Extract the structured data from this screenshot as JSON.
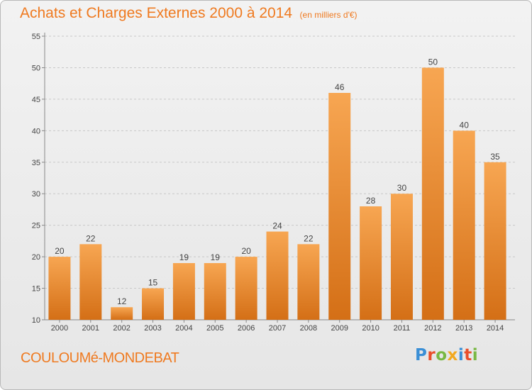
{
  "header": {
    "title": "Achats et Charges Externes 2000 à 2014",
    "subtitle": "(en milliers d'€)"
  },
  "footer": {
    "commune": "COULOUMé-MONDEBAT",
    "logo": {
      "text": "Proxiti",
      "letters": [
        {
          "ch": "P",
          "color": "#3a8fd6"
        },
        {
          "ch": "r",
          "color": "#e94e2a"
        },
        {
          "ch": "o",
          "color": "#78b843"
        },
        {
          "ch": "x",
          "color": "#f2a91f"
        },
        {
          "ch": "i",
          "color": "#3a8fd6"
        },
        {
          "ch": "t",
          "color": "#e94e2a"
        },
        {
          "ch": "i",
          "color": "#78b843"
        }
      ]
    }
  },
  "colors": {
    "accent": "#ef7a20",
    "bar_light": "#f7a652",
    "bar_dark": "#d9731a",
    "grid": "#c8c8c8"
  },
  "chart_data": {
    "type": "bar",
    "title": "Achats et Charges Externes 2000 à 2014",
    "categories": [
      "2000",
      "2001",
      "2002",
      "2003",
      "2004",
      "2005",
      "2006",
      "2007",
      "2008",
      "2009",
      "2010",
      "2011",
      "2012",
      "2013",
      "2014"
    ],
    "values": [
      20,
      22,
      12,
      15,
      19,
      19,
      20,
      24,
      22,
      46,
      28,
      30,
      50,
      40,
      35
    ],
    "ylim": [
      10,
      55
    ],
    "yticks": [
      10,
      15,
      20,
      25,
      30,
      35,
      40,
      45,
      50,
      55
    ],
    "grid": true,
    "data_labels": true
  }
}
